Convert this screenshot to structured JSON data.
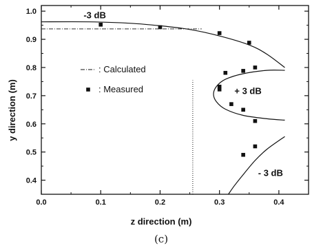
{
  "chart_data": {
    "type": "scatter",
    "xlabel": "z direction (m)",
    "ylabel": "y direction (m)",
    "xlim": [
      0.0,
      0.45
    ],
    "ylim": [
      0.35,
      1.02
    ],
    "x_ticks": [
      "0.0",
      "0.1",
      "0.2",
      "0.3",
      "0.4"
    ],
    "y_ticks": [
      "0.4",
      "0.5",
      "0.6",
      "0.7",
      "0.8",
      "0.9",
      "1.0"
    ],
    "grid": false,
    "legend_position": "center-left",
    "legend": [
      {
        "name": "Calculated",
        "text": ": Calculated",
        "style": "dash-dot line"
      },
      {
        "name": "Measured",
        "text": ": Measured",
        "style": "square marker"
      }
    ],
    "annotations": [
      {
        "text": "-3 dB",
        "x": 0.09,
        "y": 0.985
      },
      {
        "text": "+ 3 dB",
        "x": 0.348,
        "y": 0.715
      },
      {
        "text": "- 3 dB",
        "x": 0.386,
        "y": 0.425
      }
    ],
    "caption": "(c)",
    "series": [
      {
        "name": "Calculated",
        "kind": "line",
        "curves": [
          {
            "points": [
              [
                0.0,
                0.962
              ],
              [
                0.08,
                0.962
              ],
              [
                0.15,
                0.957
              ],
              [
                0.2,
                0.948
              ],
              [
                0.25,
                0.935
              ],
              [
                0.3,
                0.912
              ],
              [
                0.35,
                0.88
              ],
              [
                0.38,
                0.847
              ],
              [
                0.41,
                0.8
              ]
            ]
          },
          {
            "points": [
              [
                0.41,
                0.79
              ],
              [
                0.38,
                0.79
              ],
              [
                0.34,
                0.778
              ],
              [
                0.31,
                0.758
              ],
              [
                0.295,
                0.733
              ],
              [
                0.29,
                0.705
              ],
              [
                0.295,
                0.678
              ],
              [
                0.31,
                0.652
              ],
              [
                0.34,
                0.63
              ],
              [
                0.38,
                0.618
              ],
              [
                0.41,
                0.613
              ]
            ]
          },
          {
            "points": [
              [
                0.315,
                0.35
              ],
              [
                0.325,
                0.38
              ],
              [
                0.34,
                0.42
              ],
              [
                0.36,
                0.47
              ],
              [
                0.38,
                0.51
              ],
              [
                0.41,
                0.555
              ]
            ]
          },
          {
            "points": [
              [
                0.0,
                0.937
              ],
              [
                0.27,
                0.937
              ]
            ]
          },
          {
            "points": [
              [
                0.255,
                0.35
              ],
              [
                0.255,
                0.755
              ]
            ]
          }
        ]
      },
      {
        "name": "Measured",
        "kind": "markers",
        "points": [
          [
            0.1,
            0.952
          ],
          [
            0.2,
            0.943
          ],
          [
            0.3,
            0.922
          ],
          [
            0.35,
            0.888
          ],
          [
            0.31,
            0.781
          ],
          [
            0.34,
            0.788
          ],
          [
            0.36,
            0.8
          ],
          [
            0.3,
            0.732
          ],
          [
            0.3,
            0.722
          ],
          [
            0.32,
            0.67
          ],
          [
            0.34,
            0.65
          ],
          [
            0.36,
            0.61
          ],
          [
            0.36,
            0.52
          ],
          [
            0.34,
            0.49
          ]
        ]
      }
    ]
  }
}
